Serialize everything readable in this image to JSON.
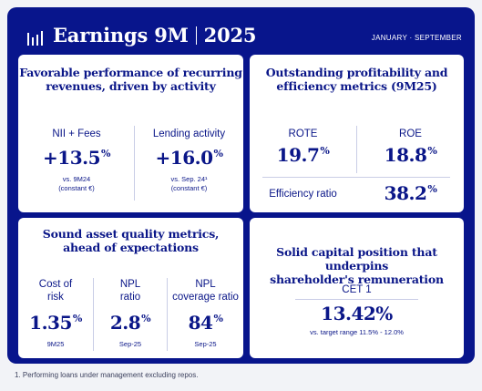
{
  "header": {
    "logo_icon": "bar-chart-logo-icon",
    "title_main": "Earnings 9M",
    "title_year": "2025",
    "period": "JANUARY · SEPTEMBER"
  },
  "cards": {
    "revenues": {
      "title_line1": "Favorable performance of recurring",
      "title_line2": "revenues, driven by activity",
      "nii": {
        "label": "NII + Fees",
        "value": "+13.5",
        "unit": "%",
        "sub1": "vs. 9M24",
        "sub2": "(constant €)"
      },
      "lending": {
        "label": "Lending activity",
        "value": "+16.0",
        "unit": "%",
        "sub1": "vs. Sep. 24¹",
        "sub2": "(constant €)"
      }
    },
    "profitability": {
      "title_line1": "Outstanding profitability and",
      "title_line2": "efficiency metrics (9M25)",
      "rote": {
        "label": "ROTE",
        "value": "19.7",
        "unit": "%"
      },
      "roe": {
        "label": "ROE",
        "value": "18.8",
        "unit": "%"
      },
      "efficiency": {
        "label": "Efficiency ratio",
        "value": "38.2",
        "unit": "%"
      }
    },
    "asset_quality": {
      "title_line1": "Sound asset quality metrics,",
      "title_line2": "ahead of expectations",
      "cost_of_risk": {
        "label1": "Cost of",
        "label2": "risk",
        "value": "1.35",
        "unit": "%",
        "sub": "9M25"
      },
      "npl": {
        "label1": "NPL",
        "label2": "ratio",
        "value": "2.8",
        "unit": "%",
        "sub": "Sep-25"
      },
      "npl_coverage": {
        "label1": "NPL",
        "label2": "coverage ratio",
        "value": "84",
        "unit": "%",
        "sub": "Sep-25"
      }
    },
    "capital": {
      "title_line1": "Solid capital position that underpins",
      "title_line2": "shareholder's remuneration",
      "cet1": {
        "label": "CET 1",
        "value": "13.42%",
        "sub": "vs. target range 11.5% - 12.0%"
      }
    }
  },
  "footnote": "1. Performing loans under management excluding repos.",
  "colors": {
    "brand": "#08158c",
    "card": "#ffffff",
    "text": "#0a1688"
  }
}
